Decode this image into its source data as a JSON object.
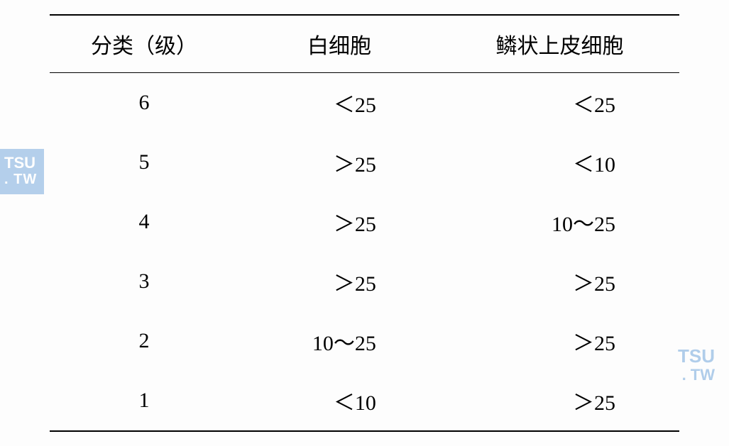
{
  "table": {
    "headers": {
      "col1": "分类（级）",
      "col2": "白细胞",
      "col3": "鳞状上皮细胞"
    },
    "rows": [
      {
        "c1": "6",
        "c2": "＜25",
        "c3": "＜25"
      },
      {
        "c1": "5",
        "c2": "＞25",
        "c3": "＜10"
      },
      {
        "c1": "4",
        "c2": "＞25",
        "c3": "10～25"
      },
      {
        "c1": "3",
        "c2": "＞25",
        "c3": "＞25"
      },
      {
        "c1": "2",
        "c2": "10～25",
        "c3": "＞25"
      },
      {
        "c1": "1",
        "c2": "＜10",
        "c3": "＞25"
      }
    ]
  },
  "watermark": {
    "line1": "TSU",
    "line2": ". TW"
  },
  "colors": {
    "border": "#000000",
    "text": "#000000",
    "background": "#fdfdfd",
    "watermark_bg": "#a8c8e8",
    "watermark_fg_left": "#ffffff",
    "watermark_fg_right": "#a8c8e8"
  },
  "typography": {
    "header_fontsize": 30,
    "cell_fontsize": 30,
    "header_fontfamily": "SimSun",
    "cell_fontfamily": "Times New Roman"
  }
}
